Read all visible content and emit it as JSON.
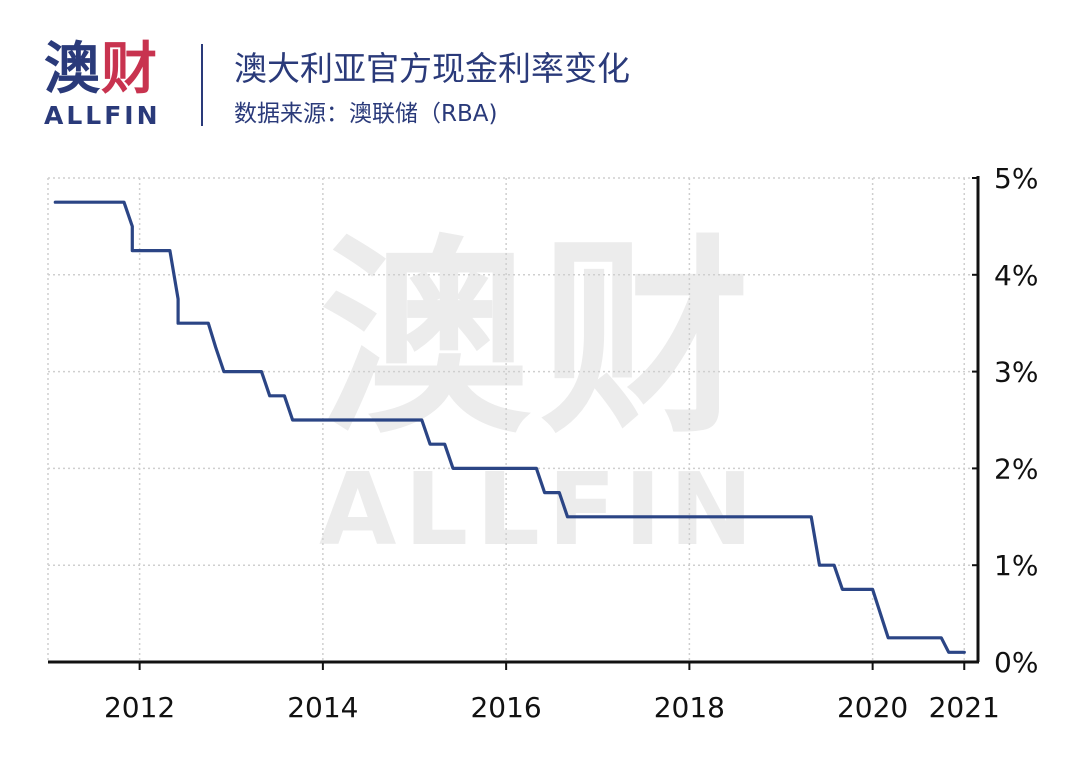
{
  "logo": {
    "cn_main": "澳",
    "cn_accent": "财",
    "en": "ALLFIN"
  },
  "header": {
    "title": "澳大利亚官方现金利率变化",
    "subtitle": "数据来源：澳联储（RBA)"
  },
  "watermark": {
    "cn": "澳财",
    "en": "ALLFIN"
  },
  "colors": {
    "brand": "#2a3a7a",
    "accent": "#c8334f",
    "line": "#2b4585",
    "grid": "#cfcfcf"
  },
  "chart_data": {
    "type": "line",
    "xlabel": "",
    "ylabel": "",
    "xlim": [
      2011.0,
      2021.15
    ],
    "ylim": [
      0,
      5
    ],
    "y_axis_position": "right",
    "grid": true,
    "x_ticks": [
      {
        "value": 2012,
        "label": "2012"
      },
      {
        "value": 2014,
        "label": "2014"
      },
      {
        "value": 2016,
        "label": "2016"
      },
      {
        "value": 2018,
        "label": "2018"
      },
      {
        "value": 2020,
        "label": "2020"
      },
      {
        "value": 2021,
        "label": "2021"
      }
    ],
    "y_ticks": [
      {
        "value": 0,
        "label": "0%"
      },
      {
        "value": 1,
        "label": "1%"
      },
      {
        "value": 2,
        "label": "2%"
      },
      {
        "value": 3,
        "label": "3%"
      },
      {
        "value": 4,
        "label": "4%"
      },
      {
        "value": 5,
        "label": "5%"
      }
    ],
    "series": [
      {
        "x": [
          2011.08,
          2011.83,
          2011.92,
          2011.92,
          2012.33,
          2012.42,
          2012.42,
          2012.75,
          2012.83,
          2012.83,
          2012.92,
          2012.92,
          2013.33,
          2013.42,
          2013.42,
          2013.58,
          2013.67,
          2015.08,
          2015.17,
          2015.33,
          2015.42,
          2016.33,
          2016.42,
          2016.58,
          2016.67,
          2019.33,
          2019.42,
          2019.58,
          2019.67,
          2020.0,
          2020.17,
          2020.75,
          2020.83,
          2021.0
        ],
        "y": [
          4.75,
          4.75,
          4.5,
          4.25,
          4.25,
          3.75,
          3.5,
          3.5,
          3.25,
          3.25,
          3.0,
          3.0,
          3.0,
          2.75,
          2.75,
          2.75,
          2.5,
          2.5,
          2.25,
          2.25,
          2.0,
          2.0,
          1.75,
          1.75,
          1.5,
          1.5,
          1.0,
          1.0,
          0.75,
          0.75,
          0.25,
          0.25,
          0.1,
          0.1
        ]
      }
    ]
  }
}
